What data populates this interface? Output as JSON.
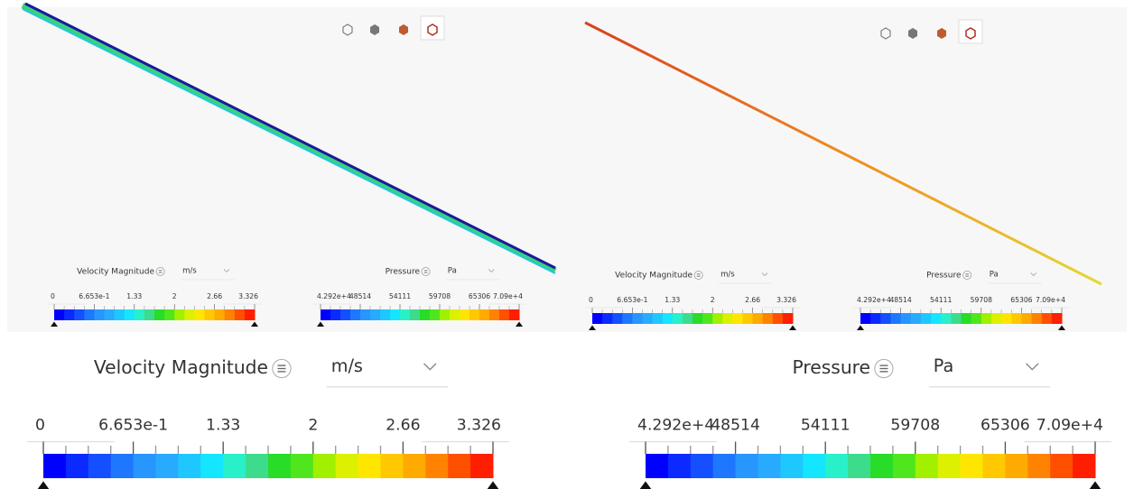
{
  "colormap": [
    "#0000ff",
    "#0a2aff",
    "#1450ff",
    "#1e78ff",
    "#2896ff",
    "#28aaff",
    "#1ec8ff",
    "#14e6ff",
    "#28f0c8",
    "#3cdc8c",
    "#28dc28",
    "#50e61e",
    "#a0f000",
    "#dcf000",
    "#ffe600",
    "#ffc800",
    "#ffaa00",
    "#ff8200",
    "#ff5000",
    "#ff1e00"
  ],
  "views": [
    {
      "legends": [
        {
          "title": "Velocity Magnitude",
          "unit": "m/s",
          "ticks": [
            "0",
            "6.653e-1",
            "1.33",
            "2",
            "2.66",
            "3.326"
          ]
        },
        {
          "title": "Pressure",
          "unit": "Pa",
          "ticks": [
            "4.292e+4",
            "48514",
            "54111",
            "59708",
            "65306",
            "7.09e+4"
          ]
        }
      ]
    },
    {
      "legends": [
        {
          "title": "Velocity Magnitude",
          "unit": "m/s",
          "ticks": [
            "0",
            "6.653e-1",
            "1.33",
            "2",
            "2.66",
            "3.326"
          ]
        },
        {
          "title": "Pressure",
          "unit": "Pa",
          "ticks": [
            "4.292e+4",
            "48514",
            "54111",
            "59708",
            "65306",
            "7.09e+4"
          ]
        }
      ]
    }
  ],
  "zoom": {
    "legends": [
      {
        "title": "Velocity Magnitude",
        "unit": "m/s",
        "ticks": [
          "0",
          "6.653e-1",
          "1.33",
          "2",
          "2.66",
          "3.326"
        ]
      },
      {
        "title": "Pressure",
        "unit": "Pa",
        "ticks": [
          "4.292e+4",
          "48514",
          "54111",
          "59708",
          "65306",
          "7.09e+4"
        ]
      }
    ]
  }
}
